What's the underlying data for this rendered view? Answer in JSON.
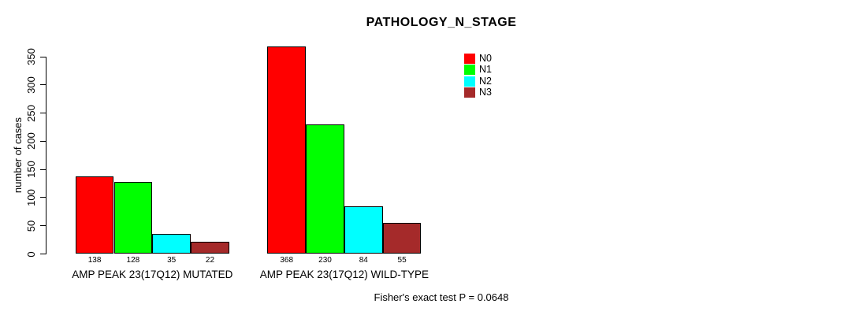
{
  "chart_data": {
    "type": "bar",
    "title": "PATHOLOGY_N_STAGE",
    "ylabel": "number of cases",
    "xlabel": "",
    "ylim": [
      0,
      350
    ],
    "yticks": [
      0,
      50,
      100,
      150,
      200,
      250,
      300,
      350
    ],
    "grid": false,
    "legend_position": "top-right",
    "categories": [
      "AMP PEAK 23(17Q12) MUTATED",
      "AMP PEAK 23(17Q12) WILD-TYPE"
    ],
    "series": [
      {
        "name": "N0",
        "color": "#ff0000",
        "values": [
          138,
          368
        ]
      },
      {
        "name": "N1",
        "color": "#00ff00",
        "values": [
          128,
          230
        ]
      },
      {
        "name": "N2",
        "color": "#00ffff",
        "values": [
          35,
          84
        ]
      },
      {
        "name": "N3",
        "color": "#a52a2a",
        "values": [
          22,
          55
        ]
      }
    ],
    "bar_border_color": "#000000",
    "value_labels_under_bars": true,
    "footnote": "Fisher's exact test P = 0.0648"
  }
}
